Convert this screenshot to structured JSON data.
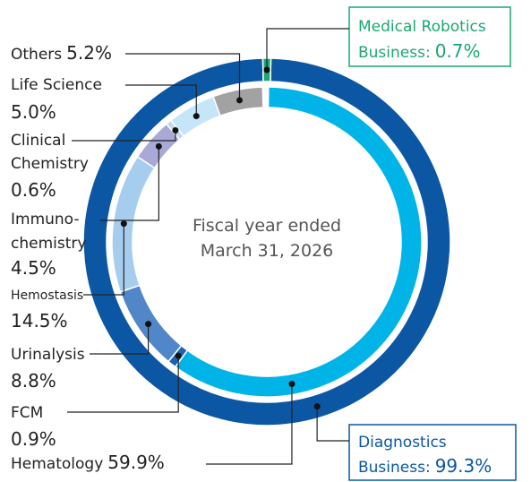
{
  "chart_data": {
    "type": "donut",
    "center_label": [
      "Fiscal year ended",
      "March 31, 2026"
    ],
    "outer": {
      "categories": [
        [
          "Diagnostics",
          "Business:"
        ],
        [
          "Medical Robotics",
          "Business:"
        ]
      ],
      "values": [
        99.3,
        0.7
      ],
      "value_labels": [
        "99.3%",
        "0.7%"
      ],
      "colors": [
        "#0b57a4",
        "#1aa870"
      ]
    },
    "inner": {
      "categories": [
        [
          "Hematology"
        ],
        [
          "FCM"
        ],
        [
          "Urinalysis"
        ],
        [
          "Hemostasis"
        ],
        [
          "Immuno-",
          "chemistry"
        ],
        [
          "Clinical",
          "Chemistry"
        ],
        [
          "Life Science"
        ],
        [
          "Others"
        ]
      ],
      "values": [
        59.9,
        0.9,
        8.8,
        14.5,
        4.5,
        0.6,
        5.0,
        5.2
      ],
      "value_labels": [
        "59.9%",
        "0.9%",
        "8.8%",
        "14.5%",
        "4.5%",
        "0.6%",
        "5.0%",
        "5.2%"
      ],
      "colors": [
        "#00b4e8",
        "#1e64b0",
        "#5187c8",
        "#a7cdee",
        "#a9a9d8",
        "#c3d9f1",
        "#c5e5f8",
        "#a2a2a2"
      ]
    }
  }
}
